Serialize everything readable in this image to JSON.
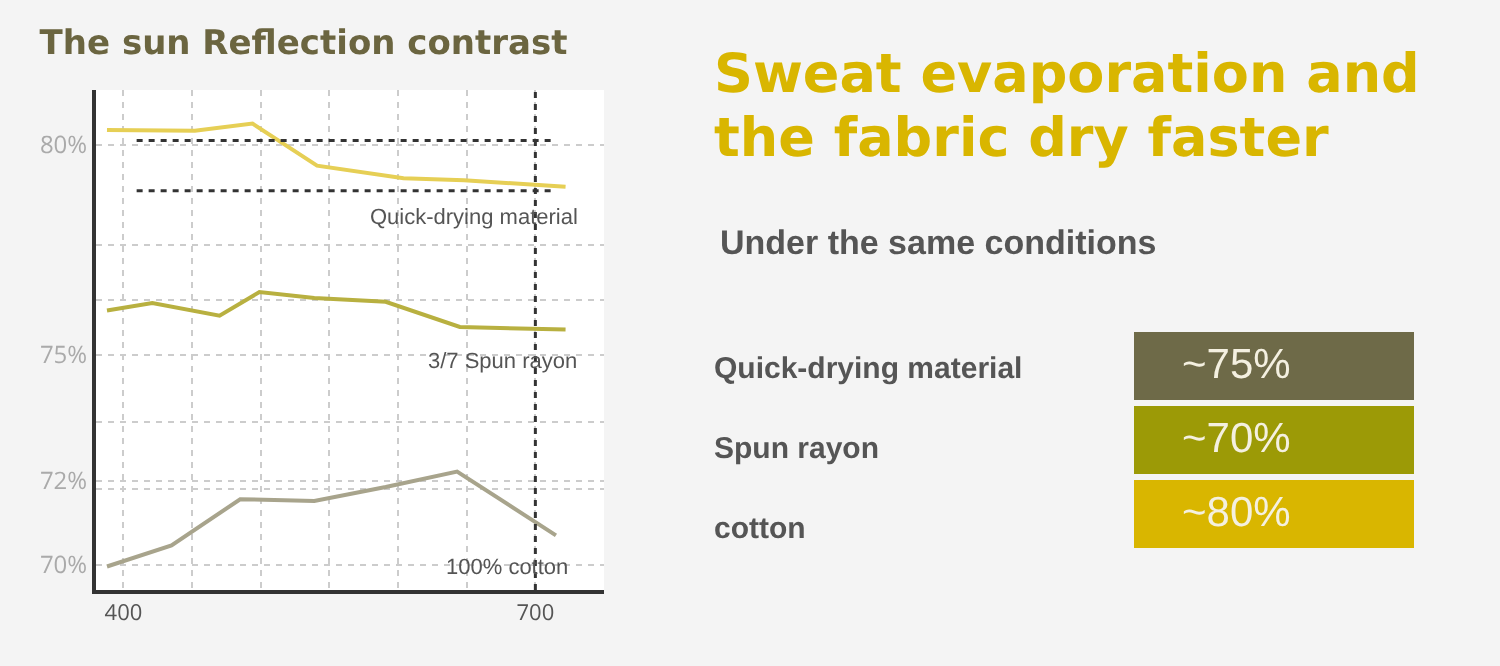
{
  "chart_data": [
    {
      "type": "line",
      "title": "The sun Reflection contrast",
      "series": [
        {
          "name": "Quick-drying material",
          "color": "#e6cf55",
          "x": [
            388,
            452,
            494,
            541,
            604,
            648,
            722
          ],
          "values": [
            80.35,
            80.33,
            80.5,
            79.5,
            79.2,
            79.15,
            79.0
          ]
        },
        {
          "name": "3/7 Spun rayon",
          "color": "#b8b040",
          "x": [
            388,
            421,
            470,
            499,
            539,
            591,
            645,
            722
          ],
          "values": [
            76.05,
            76.23,
            75.93,
            76.49,
            76.35,
            76.26,
            75.66,
            75.6
          ]
        },
        {
          "name": "100% cotton",
          "color": "#a8a48c",
          "x": [
            388,
            435,
            485,
            539,
            591,
            643,
            715
          ],
          "values": [
            69.96,
            70.46,
            71.56,
            71.52,
            71.85,
            72.22,
            70.7
          ]
        }
      ],
      "xlim": [
        380,
        750
      ],
      "xticks": [
        400,
        {
          "value": 450,
          "label": null
        },
        {
          "value": 500,
          "label": null
        },
        {
          "value": 550,
          "label": null
        },
        {
          "value": 600,
          "label": null
        },
        {
          "value": 650,
          "label": null
        },
        700
      ],
      "ylim": [
        69.4,
        81.3
      ],
      "yticks": [
        {
          "value": 70,
          "label": "70%"
        },
        {
          "value": 71.8,
          "label": null
        },
        {
          "value": 72,
          "label": "72%"
        },
        {
          "value": 73.4,
          "label": null
        },
        {
          "value": 75,
          "label": "75%"
        },
        {
          "value": 76.3,
          "label": null
        },
        {
          "value": 77.6,
          "label": null
        },
        {
          "value": 80,
          "label": "80%"
        }
      ],
      "ref_lines": [
        {
          "axis": "y",
          "value": 80.1,
          "color": "#333333",
          "line_style": "dotted"
        },
        {
          "axis": "y",
          "value": 78.9,
          "color": "#333333",
          "line_style": "dotted"
        },
        {
          "axis": "x",
          "value": 700,
          "color": "#333333",
          "line_style": "dotted"
        }
      ],
      "grid": true,
      "legend": false,
      "marker": "none",
      "line_style": "solid"
    },
    {
      "type": "other",
      "title": "Sweat evaporation and the fabric dry faster",
      "subtitle": "Under the same conditions",
      "annotations": [
        "Quick-drying material",
        "~75%",
        "Spun rayon",
        "~70%",
        "cotton",
        "~80%"
      ]
    }
  ]
}
